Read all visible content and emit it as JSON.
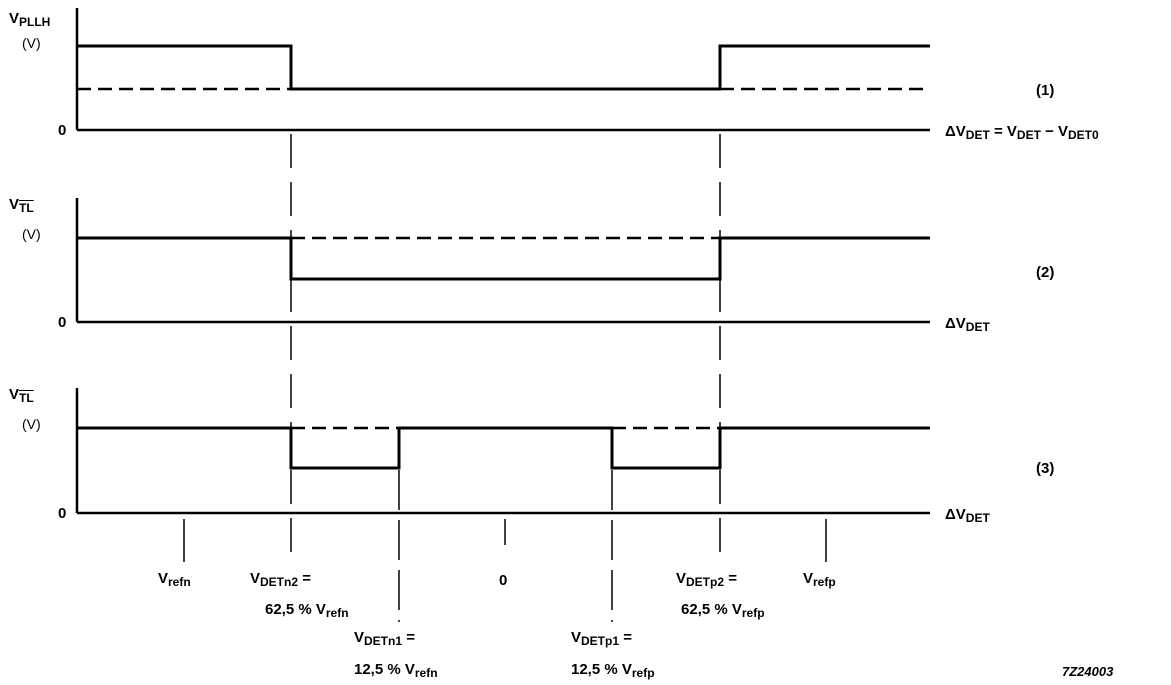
{
  "panels": [
    {
      "number": "(1)",
      "y_label": {
        "main": "V",
        "sub": "PLLH",
        "overline": false
      },
      "y_unit": "(V)",
      "origin": "0",
      "x_label": {
        "delta": "ΔV",
        "sub": "DET",
        "eq": " = V",
        "sub2": "DET",
        "minus": " − V",
        "sub3": "DET0"
      }
    },
    {
      "number": "(2)",
      "y_label": {
        "main": "V",
        "sub": "TL",
        "overline": true
      },
      "y_unit": "(V)",
      "origin": "0",
      "x_label": {
        "delta": "ΔV",
        "sub": "DET"
      }
    },
    {
      "number": "(3)",
      "y_label": {
        "main": "V",
        "sub": "TL",
        "overline": true
      },
      "y_unit": "(V)",
      "origin": "0",
      "x_label": {
        "delta": "ΔV",
        "sub": "DET"
      }
    }
  ],
  "x_markers": {
    "vrefn": {
      "main": "V",
      "sub": "refn"
    },
    "vdetn2": {
      "main": "V",
      "sub": "DETn2",
      "suffix": " =",
      "line2_pct": "62,5 % V",
      "line2_sub": "refn"
    },
    "vdetn1": {
      "main": "V",
      "sub": "DETn1",
      "suffix": " =",
      "line2_pct": "12,5 % V",
      "line2_sub": "refn"
    },
    "zero": "0",
    "vdetp1": {
      "main": "V",
      "sub": "DETp1",
      "suffix": " =",
      "line2_pct": "12,5 % V",
      "line2_sub": "refp"
    },
    "vdetp2": {
      "main": "V",
      "sub": "DETp2",
      "suffix": " =",
      "line2_pct": "62,5 % V",
      "line2_sub": "refp"
    },
    "vrefp": {
      "main": "V",
      "sub": "refp"
    }
  },
  "figure_code": "7Z24003"
}
